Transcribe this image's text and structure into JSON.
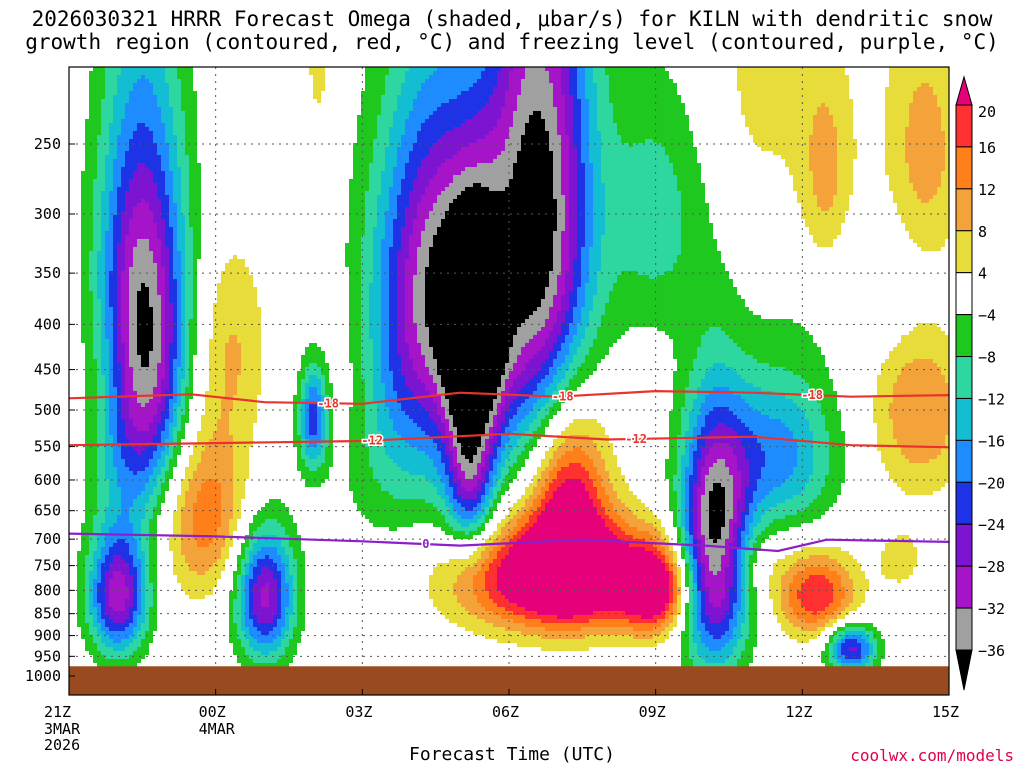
{
  "title": {
    "line1": "2026030321 HRRR Forecast Omega (shaded, μbar/s) for KILN with dendritic snow",
    "line2": "growth region (contoured, red, °C) and freezing level (contoured, purple, °C)"
  },
  "credit": "coolwx.com/models",
  "chart_data": {
    "type": "heatmap",
    "xlabel": "Forecast Time (UTC)",
    "ylabel": "Pressure (hPa)",
    "x_ticks": [
      {
        "hours": 0,
        "label": "21Z",
        "sub": [
          "3MAR",
          "2026"
        ]
      },
      {
        "hours": 3,
        "label": "00Z",
        "sub": [
          "4MAR"
        ]
      },
      {
        "hours": 6,
        "label": "03Z",
        "sub": []
      },
      {
        "hours": 9,
        "label": "06Z",
        "sub": []
      },
      {
        "hours": 12,
        "label": "09Z",
        "sub": []
      },
      {
        "hours": 15,
        "label": "12Z",
        "sub": []
      },
      {
        "hours": 18,
        "label": "15Z",
        "sub": []
      }
    ],
    "xlim_hours": [
      0,
      18
    ],
    "y_ticks": [
      250,
      300,
      350,
      400,
      450,
      500,
      550,
      600,
      650,
      700,
      750,
      800,
      850,
      900,
      950,
      1000
    ],
    "ylim_hpa": [
      200,
      1050
    ],
    "colorbar": {
      "labels": [
        "20",
        "16",
        "12",
        "8",
        "4",
        "−4",
        "−8",
        "−12",
        "−16",
        "−20",
        "−24",
        "−28",
        "−32",
        "−36"
      ],
      "colors": [
        "#e6007a",
        "#ff3030",
        "#ff7f1a",
        "#f4a23a",
        "#e8dc3a",
        "#ffffff",
        "#1ec81e",
        "#2ed7a0",
        "#14bed2",
        "#1e8cff",
        "#1e32e6",
        "#7d14d2",
        "#a514c8",
        "#a0a0a0",
        "#000000"
      ]
    },
    "omega_features": [
      {
        "x": 1.5,
        "p": 420,
        "rx": 0.9,
        "rp": 220,
        "peak": -40
      },
      {
        "x": 9.6,
        "p": 310,
        "rx": 1.1,
        "rp": 230,
        "peak": -40
      },
      {
        "x": 8.3,
        "p": 410,
        "rx": 0.6,
        "rp": 120,
        "peak": -36
      },
      {
        "x": 7.5,
        "p": 340,
        "rx": 1.1,
        "rp": 160,
        "peak": -26
      },
      {
        "x": 13.2,
        "p": 720,
        "rx": 0.7,
        "rp": 230,
        "peak": -40
      },
      {
        "x": 8.2,
        "p": 600,
        "rx": 0.5,
        "rp": 120,
        "peak": -22
      },
      {
        "x": 6.9,
        "p": 480,
        "rx": 1.6,
        "rp": 200,
        "peak": -14
      },
      {
        "x": 12.0,
        "p": 300,
        "rx": 1.0,
        "rp": 100,
        "peak": -10
      },
      {
        "x": 16.5,
        "p": 360,
        "rx": 1.8,
        "rp": 70,
        "peak": -6
      },
      {
        "x": 14.5,
        "p": 560,
        "rx": 1.2,
        "rp": 120,
        "peak": -18
      },
      {
        "x": 1.0,
        "p": 810,
        "rx": 0.6,
        "rp": 130,
        "peak": -30
      },
      {
        "x": 4.0,
        "p": 810,
        "rx": 0.6,
        "rp": 140,
        "peak": -30
      },
      {
        "x": 5.0,
        "p": 510,
        "rx": 0.3,
        "rp": 70,
        "peak": -22
      },
      {
        "x": 16.0,
        "p": 930,
        "rx": 0.5,
        "rp": 60,
        "peak": -26
      },
      {
        "x": 10.0,
        "p": 770,
        "rx": 2.0,
        "rp": 110,
        "peak": 32
      },
      {
        "x": 10.2,
        "p": 620,
        "rx": 0.8,
        "rp": 170,
        "peak": 24
      },
      {
        "x": 12.0,
        "p": 800,
        "rx": 0.7,
        "rp": 90,
        "peak": 22
      },
      {
        "x": 2.7,
        "p": 650,
        "rx": 1.0,
        "rp": 150,
        "peak": 16
      },
      {
        "x": 15.3,
        "p": 810,
        "rx": 0.8,
        "rp": 90,
        "peak": 20
      },
      {
        "x": 17.4,
        "p": 500,
        "rx": 1.0,
        "rp": 120,
        "peak": 12
      },
      {
        "x": 15.5,
        "p": 280,
        "rx": 0.6,
        "rp": 90,
        "peak": 10
      },
      {
        "x": 17.5,
        "p": 260,
        "rx": 0.9,
        "rp": 100,
        "peak": 10
      },
      {
        "x": 14.2,
        "p": 200,
        "rx": 1.0,
        "rp": 90,
        "peak": 6
      },
      {
        "x": 5.1,
        "p": 200,
        "rx": 0.3,
        "rp": 50,
        "peak": 6
      },
      {
        "x": 0.9,
        "p": 450,
        "rx": 0.7,
        "rp": 90,
        "peak": 6
      },
      {
        "x": 3.3,
        "p": 420,
        "rx": 0.8,
        "rp": 110,
        "peak": 8
      },
      {
        "x": 5.6,
        "p": 460,
        "rx": 0.8,
        "rp": 130,
        "peak": 6
      },
      {
        "x": 13.8,
        "p": 740,
        "rx": 0.8,
        "rp": 70,
        "peak": 6
      },
      {
        "x": 17.0,
        "p": 740,
        "rx": 0.5,
        "rp": 60,
        "peak": 6
      }
    ],
    "contours": [
      {
        "name": "-18",
        "color": "#e8342c",
        "points": [
          [
            0,
            485
          ],
          [
            2.5,
            480
          ],
          [
            4,
            490
          ],
          [
            6,
            492
          ],
          [
            8,
            478
          ],
          [
            10,
            483
          ],
          [
            12,
            476
          ],
          [
            14,
            478
          ],
          [
            16,
            483
          ],
          [
            18,
            481
          ]
        ],
        "label_at_hours": [
          5.3,
          10.1,
          15.2
        ]
      },
      {
        "name": "-12",
        "color": "#e8342c",
        "points": [
          [
            0,
            548
          ],
          [
            3,
            545
          ],
          [
            6,
            542
          ],
          [
            9,
            532
          ],
          [
            11,
            540
          ],
          [
            14,
            536
          ],
          [
            16,
            548
          ],
          [
            18,
            551
          ]
        ],
        "label_at_hours": [
          6.2,
          11.6
        ]
      },
      {
        "name": "0",
        "color": "#8c1ecc",
        "points": [
          [
            0,
            690
          ],
          [
            3,
            695
          ],
          [
            6,
            704
          ],
          [
            8,
            712
          ],
          [
            10.5,
            701
          ],
          [
            13,
            712
          ],
          [
            14.5,
            722
          ],
          [
            15.5,
            701
          ],
          [
            18,
            705
          ]
        ],
        "label_at_hours": [
          7.3
        ]
      }
    ],
    "ground": {
      "from_hpa": 975,
      "color": "#9a4a1f"
    }
  }
}
